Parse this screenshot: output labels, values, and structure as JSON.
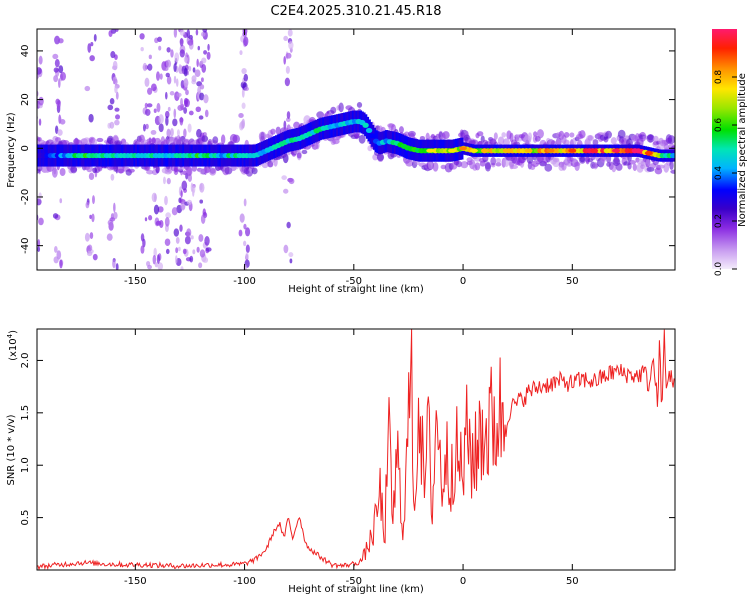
{
  "title": "C2E4.2025.310.21.45.R18",
  "chart_data": [
    {
      "type": "heatmap",
      "xlabel": "Height of straight line (km)",
      "ylabel": "Frequency (Hz)",
      "xlim": [
        -195,
        97
      ],
      "ylim": [
        -50,
        49
      ],
      "xticks": [
        -150,
        -100,
        -50,
        0,
        50
      ],
      "xtick_labels": [
        "-150",
        "-100",
        "-50",
        "0",
        "50"
      ],
      "yticks": [
        -40,
        -20,
        0,
        20,
        40
      ],
      "ytick_labels": [
        "-40",
        "-20",
        "0",
        "20",
        "40"
      ],
      "colorbar": {
        "label": "Normalized spectral amplitude",
        "range": [
          0,
          1
        ],
        "ticks": [
          0.0,
          0.2,
          0.4,
          0.6,
          0.8
        ],
        "tick_labels": [
          "0.0",
          "0.2",
          "0.4",
          "0.6",
          "0.8"
        ],
        "colormap": [
          "#f4ecfb",
          "#c79af0",
          "#8a2be2",
          "#3a00c8",
          "#0000ff",
          "#00b4ff",
          "#00e6b4",
          "#00e000",
          "#9be600",
          "#ffe600",
          "#ff9600",
          "#ff2000",
          "#ff1a6e"
        ]
      },
      "ridge": {
        "x": [
          -195,
          -180,
          -170,
          -160,
          -150,
          -140,
          -130,
          -120,
          -110,
          -100,
          -95,
          -90,
          -85,
          -80,
          -75,
          -70,
          -65,
          -60,
          -55,
          -50,
          -47,
          -45,
          -42,
          -40,
          -38,
          -35,
          -30,
          -25,
          -20,
          -15,
          -10,
          -5,
          0,
          5,
          10,
          20,
          30,
          40,
          50,
          60,
          70,
          80,
          85,
          90,
          97
        ],
        "y": [
          -3,
          -3,
          -3,
          -3,
          -3,
          -3,
          -3,
          -3,
          -3,
          -3,
          -3,
          -1,
          1,
          3,
          4,
          6,
          8,
          9,
          10,
          11,
          11,
          10,
          6,
          3,
          2,
          3,
          2,
          0,
          -1,
          -1,
          -1,
          -1,
          0,
          -1,
          -1,
          -1,
          -1,
          -1,
          -1,
          -1,
          -1,
          -1,
          -2,
          -3,
          -3
        ],
        "amplitude": [
          0.3,
          0.5,
          0.7,
          0.55,
          0.6,
          0.5,
          0.55,
          0.6,
          0.5,
          0.6,
          0.55,
          0.45,
          0.5,
          0.55,
          0.6,
          0.55,
          0.6,
          0.5,
          0.55,
          0.5,
          0.45,
          0.5,
          0.45,
          0.4,
          0.45,
          0.5,
          0.55,
          0.6,
          0.7,
          0.75,
          0.7,
          0.75,
          0.85,
          0.75,
          0.8,
          0.8,
          0.8,
          0.85,
          0.9,
          0.95,
          0.98,
          1.0,
          0.9,
          0.7,
          0.5
        ]
      },
      "scatter_bands_x": [
        -195,
        -185,
        -170,
        -160,
        -145,
        -140,
        -135,
        -130,
        -128,
        -125,
        -120,
        -118,
        -100,
        -80
      ]
    },
    {
      "type": "line",
      "xlabel": "Height of straight line (km)",
      "ylabel": "SNR (10 * v/v)",
      "y_multiplier_label": "(x10",
      "y_multiplier_exp": "4",
      "y_multiplier_close": ")",
      "xlim": [
        -195,
        97
      ],
      "ylim": [
        0,
        2.3
      ],
      "xticks": [
        -150,
        -100,
        -50,
        0,
        50
      ],
      "xtick_labels": [
        "-150",
        "-100",
        "-50",
        "0",
        "50"
      ],
      "yticks": [
        0.5,
        1.0,
        1.5,
        2.0
      ],
      "ytick_labels": [
        "0.5",
        "1.0",
        "1.5",
        "2.0"
      ],
      "color": "#ee2222",
      "series": [
        {
          "x": [
            -195,
            -185,
            -175,
            -165,
            -155,
            -145,
            -135,
            -125,
            -115,
            -105,
            -100,
            -95,
            -90,
            -87,
            -84,
            -82,
            -80,
            -78,
            -75,
            -72,
            -70,
            -65,
            -60,
            -55,
            -50,
            -47,
            -45,
            -42,
            -40,
            -38,
            -36,
            -34,
            -32,
            -30,
            -28,
            -26,
            -24,
            -22,
            -20,
            -18,
            -16,
            -14,
            -12,
            -10,
            -8,
            -6,
            -4,
            -2,
            0,
            2,
            4,
            6,
            8,
            10,
            12,
            15,
            18,
            20,
            22,
            25,
            28,
            30,
            35,
            40,
            45,
            50,
            55,
            60,
            65,
            70,
            75,
            80,
            83,
            85,
            87,
            89,
            90,
            91,
            92,
            93,
            94,
            95,
            96,
            97
          ],
          "y": [
            0.03,
            0.05,
            0.07,
            0.06,
            0.05,
            0.05,
            0.04,
            0.04,
            0.05,
            0.05,
            0.06,
            0.1,
            0.2,
            0.35,
            0.45,
            0.3,
            0.5,
            0.3,
            0.52,
            0.25,
            0.2,
            0.12,
            0.05,
            0.04,
            0.06,
            0.08,
            0.15,
            0.3,
            0.45,
            0.75,
            0.3,
            1.2,
            0.5,
            1.1,
            0.4,
            0.9,
            1.9,
            0.6,
            1.85,
            0.7,
            1.3,
            0.6,
            1.6,
            0.8,
            1.1,
            0.9,
            1.2,
            1.0,
            0.95,
            1.3,
            1.1,
            1.05,
            1.4,
            1.3,
            1.35,
            1.45,
            1.5,
            1.45,
            1.55,
            1.6,
            1.65,
            1.7,
            1.75,
            1.78,
            1.8,
            1.78,
            1.82,
            1.8,
            1.85,
            1.9,
            1.87,
            1.85,
            1.9,
            1.75,
            2.0,
            1.6,
            2.2,
            1.4,
            2.3,
            1.7,
            1.9,
            1.85,
            1.8,
            1.9
          ]
        }
      ]
    }
  ]
}
